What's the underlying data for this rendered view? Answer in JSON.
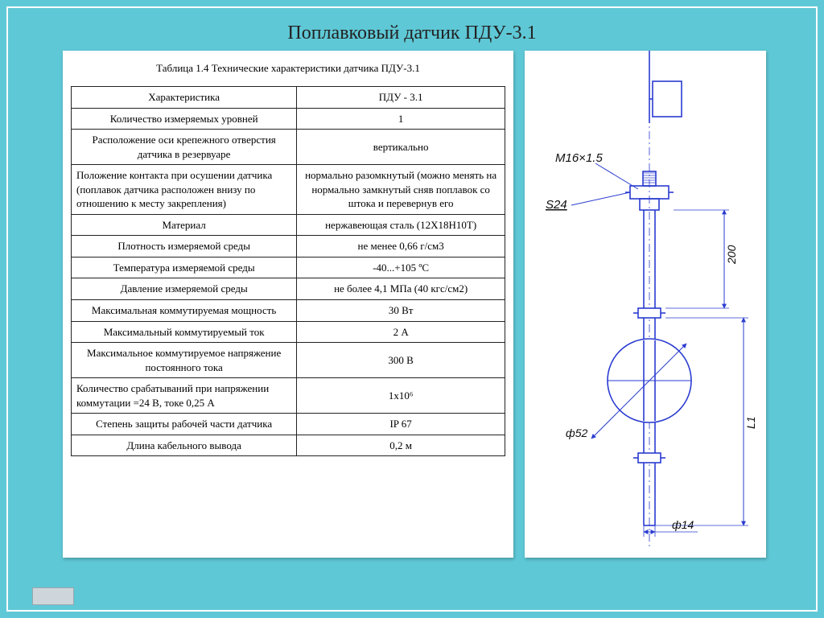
{
  "title": "Поплавковый  датчик ПДУ-3.1",
  "table": {
    "caption": "Таблица 1.4 Технические характеристики датчика ПДУ-3.1",
    "header": {
      "param": "Характеристика",
      "value": "ПДУ - 3.1"
    },
    "rows": [
      {
        "param": "Количество измеряемых уровней",
        "value": "1",
        "align": "center"
      },
      {
        "param": "Расположение оси крепежного отверстия датчика в резервуаре",
        "value": "вертикально",
        "align": "center"
      },
      {
        "param": "Положение контакта при осушении датчика (поплавок датчика расположен внизу по отношению к месту закрепления)",
        "value": "нормально разомкнутый (можно менять на нормально замкнутый сняв поплавок со штока и перевернув его",
        "align": "left"
      },
      {
        "param": "Материал",
        "value": "нержавеющая сталь (12Х18Н10Т)",
        "align": "center"
      },
      {
        "param": "Плотность измеряемой среды",
        "value": "не менее 0,66 г/см3",
        "align": "center"
      },
      {
        "param": "Температура измеряемой среды",
        "value": "-40...+105 ºС",
        "align": "center"
      },
      {
        "param": "Давление измеряемой среды",
        "value": "не более 4,1 МПа (40 кгс/см2)",
        "align": "center"
      },
      {
        "param": "Максимальная коммутируемая мощность",
        "value": "30 Вт",
        "align": "center"
      },
      {
        "param": "Максимальный коммутируемый ток",
        "value": "2 А",
        "align": "center"
      },
      {
        "param": "Максимальное коммутируемое напряжение постоянного тока",
        "value": "300 В",
        "align": "center"
      },
      {
        "param": "Количество срабатываний при напряжении коммутации =24 В, токе 0,25 А",
        "value": "1x10⁶",
        "align": "left"
      },
      {
        "param": "Степень защиты рабочей части датчика",
        "value": "IP 67",
        "align": "center"
      },
      {
        "param": "Длина кабельного вывода",
        "value": "0,2 м",
        "align": "center"
      }
    ]
  },
  "drawing": {
    "stroke": "#2a3bd0",
    "text_color": "#111",
    "font_size_pt": 13,
    "labels": {
      "thread": "M16×1.5",
      "hex": "S24",
      "len200": "200",
      "lenL1": "L1",
      "d52": "ф52",
      "d14": "ф14"
    }
  }
}
